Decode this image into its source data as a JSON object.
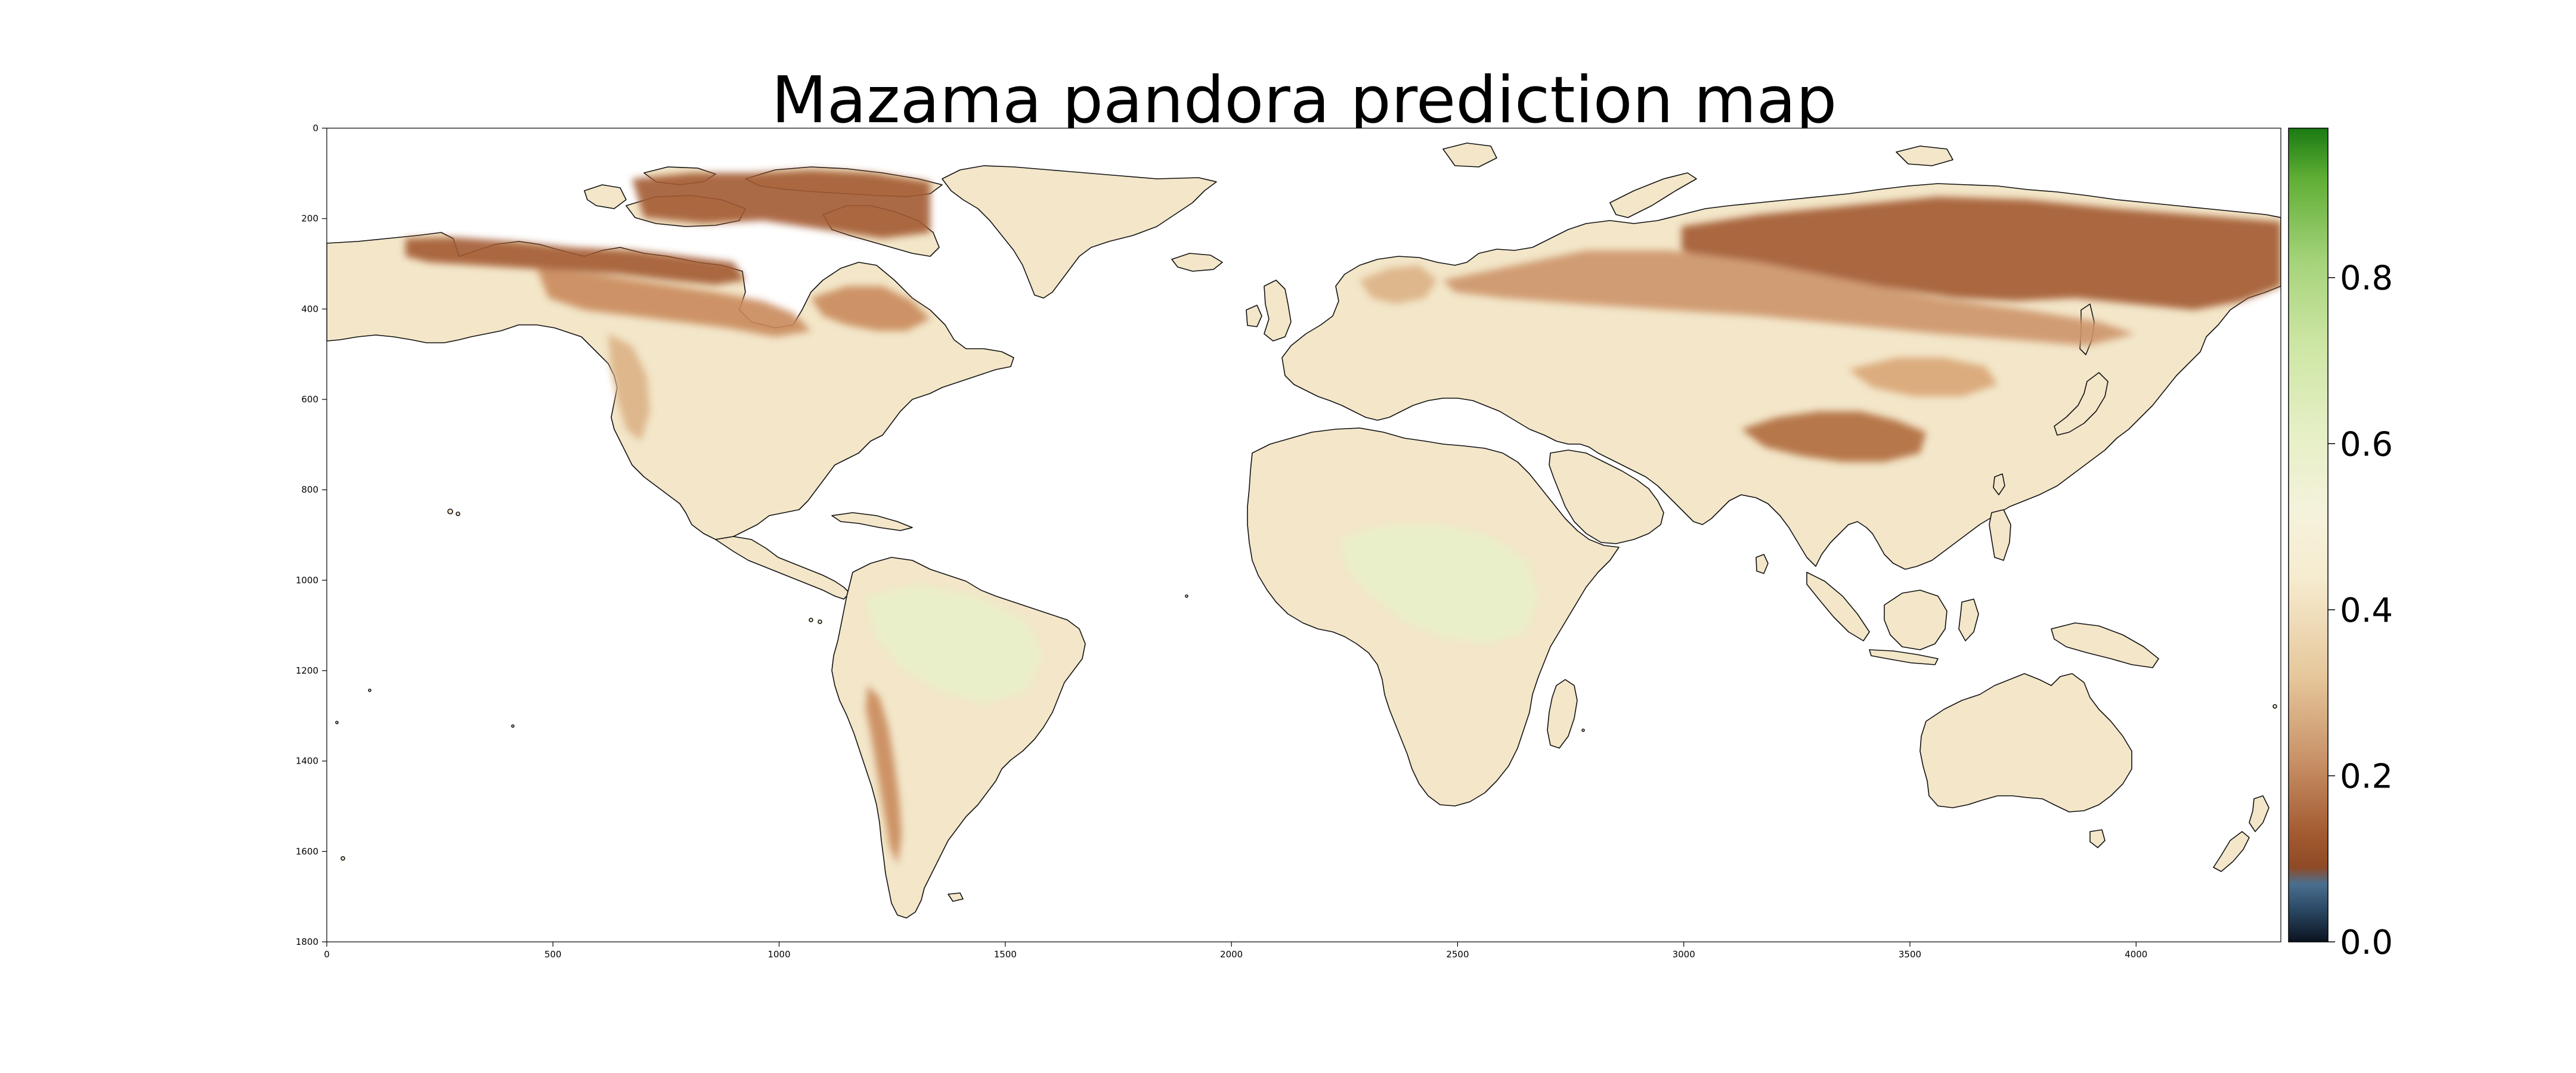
{
  "map": {
    "title": "Mazama pandora prediction map",
    "x_axis": {
      "range": [
        0,
        4320
      ],
      "ticks": [
        0,
        500,
        1000,
        1500,
        2000,
        2500,
        3000,
        3500,
        4000
      ]
    },
    "y_axis": {
      "range": [
        0,
        1800
      ],
      "inverted": true,
      "ticks": [
        0,
        200,
        400,
        600,
        800,
        1000,
        1200,
        1400,
        1600,
        1800
      ]
    },
    "colorbar": {
      "range": [
        0.0,
        0.98
      ],
      "ticks": [
        "0.0",
        "0.2",
        "0.4",
        "0.6",
        "0.8"
      ],
      "tick_values": [
        0.0,
        0.2,
        0.4,
        0.6,
        0.8
      ],
      "colormap": [
        {
          "v": 0.0,
          "color": "#0b1320"
        },
        {
          "v": 0.04,
          "color": "#2c4a66"
        },
        {
          "v": 0.07,
          "color": "#4a6f8f"
        },
        {
          "v": 0.09,
          "color": "#8f4a25"
        },
        {
          "v": 0.13,
          "color": "#a35a30"
        },
        {
          "v": 0.22,
          "color": "#c99268"
        },
        {
          "v": 0.32,
          "color": "#e6c79b"
        },
        {
          "v": 0.44,
          "color": "#f6ecd0"
        },
        {
          "v": 0.52,
          "color": "#f5f2dc"
        },
        {
          "v": 0.62,
          "color": "#e4efc3"
        },
        {
          "v": 0.72,
          "color": "#cde6a4"
        },
        {
          "v": 0.82,
          "color": "#a5d37a"
        },
        {
          "v": 0.92,
          "color": "#5fae35"
        },
        {
          "v": 0.98,
          "color": "#1a7a12"
        }
      ]
    },
    "colors": {
      "land_base": "#f3e6c9",
      "low_prediction": "#a35a30",
      "mid_prediction": "#d9a676",
      "coast": "#111111"
    }
  }
}
